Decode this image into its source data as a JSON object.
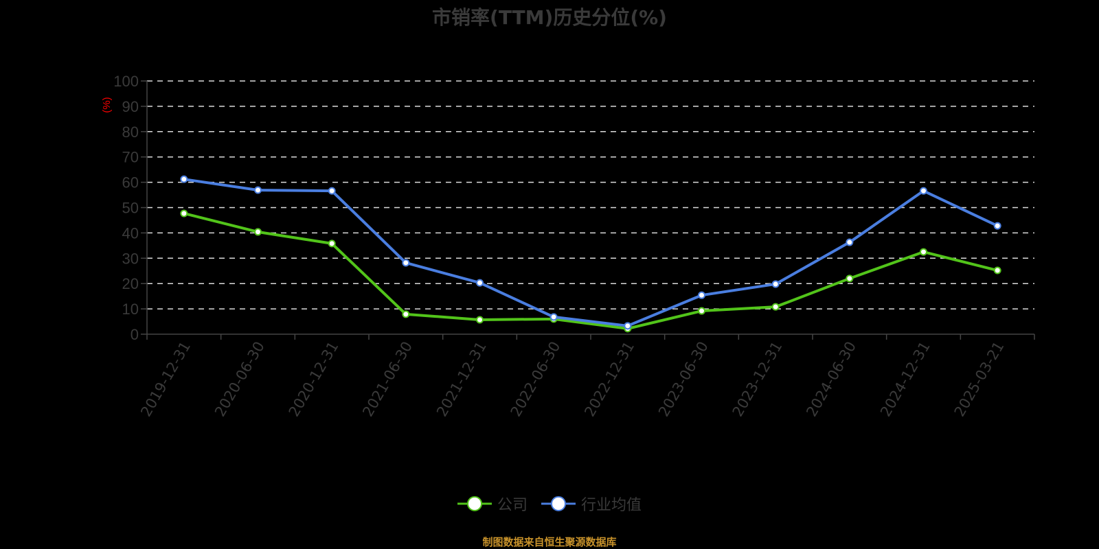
{
  "title": "市销率(TTM)历史分位(%)",
  "y_axis_unit": "(%)",
  "legend": [
    {
      "label": "公司",
      "color": "#52c41a"
    },
    {
      "label": "行业均值",
      "color": "#4a7ee0"
    }
  ],
  "footer": "制图数据来自恒生聚源数据库",
  "chart_data": {
    "type": "line",
    "title": "市销率(TTM)历史分位(%)",
    "xlabel": "",
    "ylabel": "(%)",
    "ylim": [
      0,
      100
    ],
    "yticks": [
      0,
      10,
      20,
      30,
      40,
      50,
      60,
      70,
      80,
      90,
      100
    ],
    "grid": true,
    "legend_position": "bottom",
    "categories": [
      "2019-12-31",
      "2020-06-30",
      "2020-12-31",
      "2021-06-30",
      "2021-12-31",
      "2022-06-30",
      "2022-12-31",
      "2023-06-30",
      "2023-12-31",
      "2024-06-30",
      "2024-12-31",
      "2025-03-21"
    ],
    "series": [
      {
        "name": "公司",
        "color": "#52c41a",
        "values": [
          47.7,
          40.4,
          35.8,
          7.9,
          5.7,
          6.0,
          2.2,
          9.2,
          10.8,
          22.0,
          32.5,
          25.2
        ]
      },
      {
        "name": "行业均值",
        "color": "#4a7ee0",
        "values": [
          61.2,
          56.9,
          56.6,
          28.2,
          20.3,
          6.8,
          3.3,
          15.4,
          19.8,
          36.3,
          56.6,
          42.8
        ]
      }
    ]
  }
}
